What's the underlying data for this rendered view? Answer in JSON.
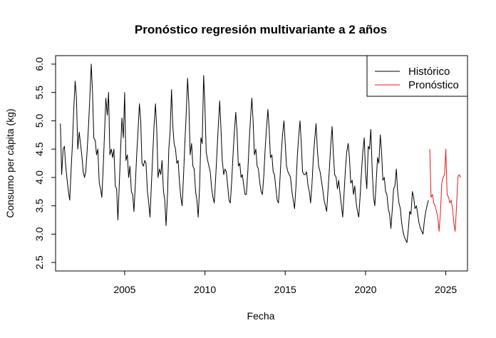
{
  "chart_data": {
    "type": "line",
    "title": "Pronóstico regresión multivariante a 2 años",
    "xlabel": "Fecha",
    "ylabel": "Consumo per cápita (kg)",
    "xlim": [
      2000.7,
      2026.35
    ],
    "ylim": [
      2.35,
      6.15
    ],
    "x_ticks": [
      2005,
      2010,
      2015,
      2020,
      2025
    ],
    "y_ticks": [
      2.5,
      3.0,
      3.5,
      4.0,
      4.5,
      5.0,
      5.5,
      6.0
    ],
    "x_tick_labels": [
      "2005",
      "2010",
      "2015",
      "2020",
      "2025"
    ],
    "y_tick_labels": [
      "2.5",
      "3.0",
      "3.5",
      "4.0",
      "4.5",
      "5.0",
      "5.5",
      "6.0"
    ],
    "grid": false,
    "legend_position": "top-right",
    "series": [
      {
        "name": "Histórico",
        "color": "#000000",
        "points": [
          [
            2001.0,
            4.95
          ],
          [
            2001.08,
            4.05
          ],
          [
            2001.17,
            4.5
          ],
          [
            2001.25,
            4.55
          ],
          [
            2001.33,
            4.2
          ],
          [
            2001.42,
            3.95
          ],
          [
            2001.5,
            3.75
          ],
          [
            2001.58,
            3.6
          ],
          [
            2001.67,
            4.15
          ],
          [
            2001.75,
            4.6
          ],
          [
            2001.83,
            5.2
          ],
          [
            2001.92,
            5.7
          ],
          [
            2002.0,
            5.4
          ],
          [
            2002.08,
            4.5
          ],
          [
            2002.17,
            4.8
          ],
          [
            2002.25,
            4.6
          ],
          [
            2002.33,
            4.4
          ],
          [
            2002.42,
            4.1
          ],
          [
            2002.5,
            4.0
          ],
          [
            2002.58,
            4.1
          ],
          [
            2002.67,
            4.5
          ],
          [
            2002.75,
            4.9
          ],
          [
            2002.83,
            5.4
          ],
          [
            2002.92,
            6.0
          ],
          [
            2003.0,
            5.5
          ],
          [
            2003.08,
            4.7
          ],
          [
            2003.17,
            4.65
          ],
          [
            2003.25,
            4.4
          ],
          [
            2003.33,
            4.5
          ],
          [
            2003.42,
            3.9
          ],
          [
            2003.5,
            3.8
          ],
          [
            2003.58,
            3.65
          ],
          [
            2003.67,
            4.2
          ],
          [
            2003.75,
            4.8
          ],
          [
            2003.83,
            5.4
          ],
          [
            2003.92,
            5.1
          ],
          [
            2004.0,
            5.5
          ],
          [
            2004.08,
            4.4
          ],
          [
            2004.17,
            4.5
          ],
          [
            2004.25,
            4.35
          ],
          [
            2004.33,
            4.5
          ],
          [
            2004.42,
            3.85
          ],
          [
            2004.5,
            3.8
          ],
          [
            2004.58,
            3.25
          ],
          [
            2004.67,
            3.9
          ],
          [
            2004.75,
            4.5
          ],
          [
            2004.83,
            5.05
          ],
          [
            2004.92,
            4.7
          ],
          [
            2005.0,
            5.5
          ],
          [
            2005.08,
            4.3
          ],
          [
            2005.17,
            4.4
          ],
          [
            2005.25,
            4.0
          ],
          [
            2005.33,
            4.2
          ],
          [
            2005.42,
            3.75
          ],
          [
            2005.5,
            3.7
          ],
          [
            2005.58,
            3.4
          ],
          [
            2005.67,
            3.9
          ],
          [
            2005.75,
            4.4
          ],
          [
            2005.83,
            4.8
          ],
          [
            2005.92,
            5.3
          ],
          [
            2006.0,
            5.0
          ],
          [
            2006.08,
            4.25
          ],
          [
            2006.17,
            4.2
          ],
          [
            2006.25,
            4.3
          ],
          [
            2006.33,
            4.25
          ],
          [
            2006.42,
            3.75
          ],
          [
            2006.5,
            3.55
          ],
          [
            2006.58,
            3.3
          ],
          [
            2006.67,
            3.9
          ],
          [
            2006.75,
            4.4
          ],
          [
            2006.83,
            4.9
          ],
          [
            2006.92,
            5.3
          ],
          [
            2007.0,
            4.85
          ],
          [
            2007.08,
            4.0
          ],
          [
            2007.17,
            4.15
          ],
          [
            2007.25,
            4.05
          ],
          [
            2007.33,
            4.3
          ],
          [
            2007.42,
            3.75
          ],
          [
            2007.5,
            3.6
          ],
          [
            2007.58,
            3.15
          ],
          [
            2007.67,
            3.7
          ],
          [
            2007.75,
            4.5
          ],
          [
            2007.83,
            4.8
          ],
          [
            2007.92,
            5.55
          ],
          [
            2008.0,
            4.9
          ],
          [
            2008.08,
            4.6
          ],
          [
            2008.17,
            4.5
          ],
          [
            2008.25,
            4.25
          ],
          [
            2008.33,
            4.3
          ],
          [
            2008.42,
            3.9
          ],
          [
            2008.5,
            3.65
          ],
          [
            2008.58,
            3.5
          ],
          [
            2008.67,
            4.05
          ],
          [
            2008.75,
            4.6
          ],
          [
            2008.83,
            5.1
          ],
          [
            2008.92,
            5.75
          ],
          [
            2009.0,
            5.3
          ],
          [
            2009.08,
            4.4
          ],
          [
            2009.17,
            4.6
          ],
          [
            2009.25,
            4.2
          ],
          [
            2009.33,
            4.15
          ],
          [
            2009.42,
            3.75
          ],
          [
            2009.5,
            3.6
          ],
          [
            2009.58,
            3.3
          ],
          [
            2009.67,
            3.85
          ],
          [
            2009.75,
            4.7
          ],
          [
            2009.83,
            4.6
          ],
          [
            2009.92,
            5.8
          ],
          [
            2010.0,
            5.25
          ],
          [
            2010.08,
            4.45
          ],
          [
            2010.17,
            4.3
          ],
          [
            2010.25,
            4.2
          ],
          [
            2010.33,
            4.1
          ],
          [
            2010.42,
            3.8
          ],
          [
            2010.5,
            3.65
          ],
          [
            2010.58,
            3.55
          ],
          [
            2010.67,
            4.0
          ],
          [
            2010.75,
            4.45
          ],
          [
            2010.83,
            4.9
          ],
          [
            2010.92,
            5.35
          ],
          [
            2011.0,
            4.85
          ],
          [
            2011.08,
            4.3
          ],
          [
            2011.17,
            4.05
          ],
          [
            2011.25,
            4.15
          ],
          [
            2011.33,
            4.1
          ],
          [
            2011.42,
            3.85
          ],
          [
            2011.5,
            3.6
          ],
          [
            2011.58,
            3.55
          ],
          [
            2011.67,
            3.95
          ],
          [
            2011.75,
            4.4
          ],
          [
            2011.83,
            4.8
          ],
          [
            2011.92,
            5.15
          ],
          [
            2012.0,
            4.8
          ],
          [
            2012.08,
            4.2
          ],
          [
            2012.17,
            4.25
          ],
          [
            2012.25,
            4.0
          ],
          [
            2012.33,
            4.05
          ],
          [
            2012.42,
            3.85
          ],
          [
            2012.5,
            3.7
          ],
          [
            2012.58,
            3.7
          ],
          [
            2012.67,
            4.1
          ],
          [
            2012.75,
            4.6
          ],
          [
            2012.83,
            5.0
          ],
          [
            2012.92,
            5.4
          ],
          [
            2013.0,
            5.0
          ],
          [
            2013.08,
            4.4
          ],
          [
            2013.17,
            4.5
          ],
          [
            2013.25,
            4.2
          ],
          [
            2013.33,
            4.15
          ],
          [
            2013.42,
            3.9
          ],
          [
            2013.5,
            3.75
          ],
          [
            2013.58,
            3.7
          ],
          [
            2013.67,
            4.05
          ],
          [
            2013.75,
            4.5
          ],
          [
            2013.83,
            4.85
          ],
          [
            2013.92,
            5.2
          ],
          [
            2014.0,
            4.85
          ],
          [
            2014.08,
            4.35
          ],
          [
            2014.17,
            4.4
          ],
          [
            2014.25,
            4.1
          ],
          [
            2014.33,
            4.05
          ],
          [
            2014.42,
            3.8
          ],
          [
            2014.5,
            3.6
          ],
          [
            2014.58,
            3.55
          ],
          [
            2014.67,
            3.95
          ],
          [
            2014.75,
            4.4
          ],
          [
            2014.83,
            4.75
          ],
          [
            2014.92,
            5.0
          ],
          [
            2015.0,
            4.6
          ],
          [
            2015.08,
            4.2
          ],
          [
            2015.17,
            4.1
          ],
          [
            2015.25,
            4.05
          ],
          [
            2015.33,
            4.0
          ],
          [
            2015.42,
            3.75
          ],
          [
            2015.5,
            3.6
          ],
          [
            2015.58,
            3.45
          ],
          [
            2015.67,
            3.85
          ],
          [
            2015.75,
            4.35
          ],
          [
            2015.83,
            4.7
          ],
          [
            2015.92,
            5.0
          ],
          [
            2016.0,
            4.6
          ],
          [
            2016.08,
            4.1
          ],
          [
            2016.17,
            4.05
          ],
          [
            2016.25,
            4.05
          ],
          [
            2016.33,
            4.1
          ],
          [
            2016.42,
            3.85
          ],
          [
            2016.5,
            3.75
          ],
          [
            2016.58,
            3.55
          ],
          [
            2016.67,
            3.9
          ],
          [
            2016.75,
            4.35
          ],
          [
            2016.83,
            4.65
          ],
          [
            2016.92,
            4.95
          ],
          [
            2017.0,
            4.5
          ],
          [
            2017.08,
            4.2
          ],
          [
            2017.17,
            4.1
          ],
          [
            2017.25,
            3.95
          ],
          [
            2017.33,
            3.8
          ],
          [
            2017.42,
            3.6
          ],
          [
            2017.5,
            3.5
          ],
          [
            2017.58,
            3.4
          ],
          [
            2017.67,
            3.8
          ],
          [
            2017.75,
            4.15
          ],
          [
            2017.83,
            4.55
          ],
          [
            2017.92,
            4.9
          ],
          [
            2018.0,
            4.4
          ],
          [
            2018.08,
            4.05
          ],
          [
            2018.17,
            4.0
          ],
          [
            2018.25,
            3.8
          ],
          [
            2018.33,
            3.95
          ],
          [
            2018.42,
            3.7
          ],
          [
            2018.5,
            3.5
          ],
          [
            2018.58,
            3.3
          ],
          [
            2018.67,
            3.75
          ],
          [
            2018.75,
            4.15
          ],
          [
            2018.83,
            4.45
          ],
          [
            2018.92,
            4.6
          ],
          [
            2019.0,
            4.35
          ],
          [
            2019.08,
            3.9
          ],
          [
            2019.17,
            3.95
          ],
          [
            2019.25,
            3.7
          ],
          [
            2019.33,
            3.85
          ],
          [
            2019.42,
            3.55
          ],
          [
            2019.5,
            3.4
          ],
          [
            2019.58,
            3.3
          ],
          [
            2019.67,
            3.7
          ],
          [
            2019.75,
            4.1
          ],
          [
            2019.83,
            4.45
          ],
          [
            2019.92,
            4.7
          ],
          [
            2020.0,
            4.1
          ],
          [
            2020.08,
            3.8
          ],
          [
            2020.17,
            4.55
          ],
          [
            2020.25,
            4.5
          ],
          [
            2020.33,
            4.85
          ],
          [
            2020.42,
            4.1
          ],
          [
            2020.5,
            3.65
          ],
          [
            2020.58,
            3.5
          ],
          [
            2020.67,
            3.95
          ],
          [
            2020.75,
            4.35
          ],
          [
            2020.83,
            4.25
          ],
          [
            2020.92,
            4.75
          ],
          [
            2021.0,
            4.45
          ],
          [
            2021.08,
            3.95
          ],
          [
            2021.17,
            4.0
          ],
          [
            2021.25,
            3.75
          ],
          [
            2021.33,
            3.7
          ],
          [
            2021.42,
            3.45
          ],
          [
            2021.5,
            3.35
          ],
          [
            2021.58,
            3.1
          ],
          [
            2021.67,
            3.45
          ],
          [
            2021.75,
            3.8
          ],
          [
            2021.83,
            3.85
          ],
          [
            2021.92,
            4.15
          ],
          [
            2022.0,
            3.75
          ],
          [
            2022.08,
            3.55
          ],
          [
            2022.17,
            3.45
          ],
          [
            2022.25,
            3.2
          ],
          [
            2022.33,
            3.05
          ],
          [
            2022.42,
            2.95
          ],
          [
            2022.5,
            2.9
          ],
          [
            2022.58,
            2.85
          ],
          [
            2022.67,
            3.1
          ],
          [
            2022.75,
            3.4
          ],
          [
            2022.83,
            3.35
          ],
          [
            2022.92,
            3.75
          ],
          [
            2023.0,
            3.65
          ],
          [
            2023.08,
            3.45
          ],
          [
            2023.17,
            3.5
          ],
          [
            2023.25,
            3.35
          ],
          [
            2023.33,
            3.2
          ],
          [
            2023.42,
            3.1
          ],
          [
            2023.5,
            3.05
          ],
          [
            2023.58,
            3.0
          ],
          [
            2023.67,
            3.25
          ],
          [
            2023.75,
            3.4
          ],
          [
            2023.83,
            3.5
          ],
          [
            2023.92,
            3.6
          ]
        ]
      },
      {
        "name": "Pronóstico",
        "color": "#e41a1c",
        "points": [
          [
            2024.0,
            4.5
          ],
          [
            2024.08,
            3.65
          ],
          [
            2024.17,
            3.7
          ],
          [
            2024.25,
            3.55
          ],
          [
            2024.33,
            3.5
          ],
          [
            2024.42,
            3.4
          ],
          [
            2024.5,
            3.3
          ],
          [
            2024.58,
            3.05
          ],
          [
            2024.67,
            3.4
          ],
          [
            2024.75,
            3.9
          ],
          [
            2024.83,
            4.0
          ],
          [
            2024.92,
            4.05
          ],
          [
            2025.0,
            4.5
          ],
          [
            2025.08,
            3.7
          ],
          [
            2025.17,
            3.65
          ],
          [
            2025.25,
            3.55
          ],
          [
            2025.33,
            3.6
          ],
          [
            2025.42,
            3.45
          ],
          [
            2025.5,
            3.2
          ],
          [
            2025.58,
            3.05
          ],
          [
            2025.67,
            3.5
          ],
          [
            2025.75,
            4.0
          ],
          [
            2025.83,
            4.05
          ],
          [
            2025.92,
            4.0
          ]
        ]
      }
    ]
  }
}
